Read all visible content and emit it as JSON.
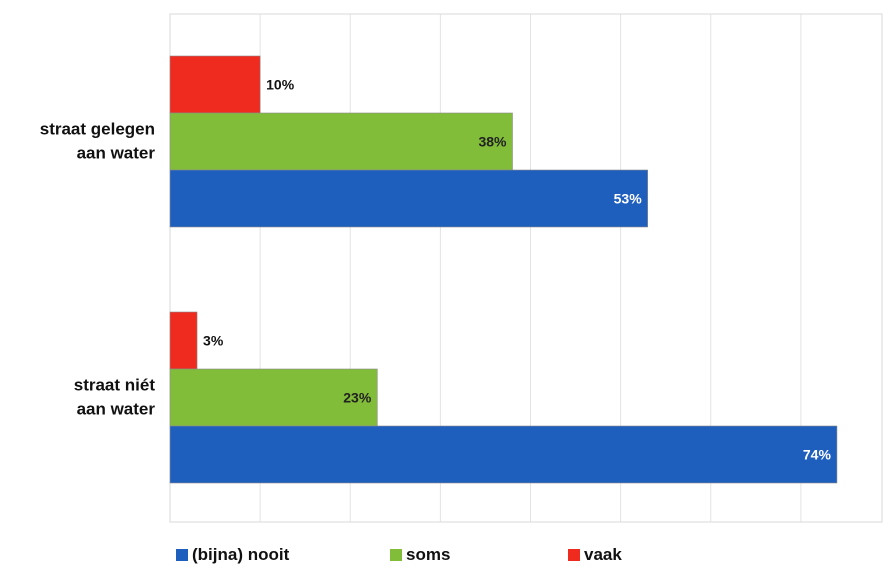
{
  "chart_data": {
    "type": "bar",
    "orientation": "horizontal",
    "categories": [
      "straat gelegen aan water",
      "straat niét aan water"
    ],
    "category_lines": [
      [
        "straat gelegen",
        "aan water"
      ],
      [
        "straat niét",
        "aan water"
      ]
    ],
    "series": [
      {
        "name": "vaak",
        "color": "#ef2a1f",
        "values": [
          10,
          3
        ]
      },
      {
        "name": "soms",
        "color": "#82bd3a",
        "values": [
          38,
          23
        ]
      },
      {
        "name": "(bijna) nooit",
        "color": "#1e5fbe",
        "values": [
          53,
          74
        ]
      }
    ],
    "value_suffix": "%",
    "xlim": [
      0,
      79
    ],
    "grid": true,
    "legend_position": "bottom",
    "legend_order": [
      "(bijna) nooit",
      "soms",
      "vaak"
    ]
  }
}
